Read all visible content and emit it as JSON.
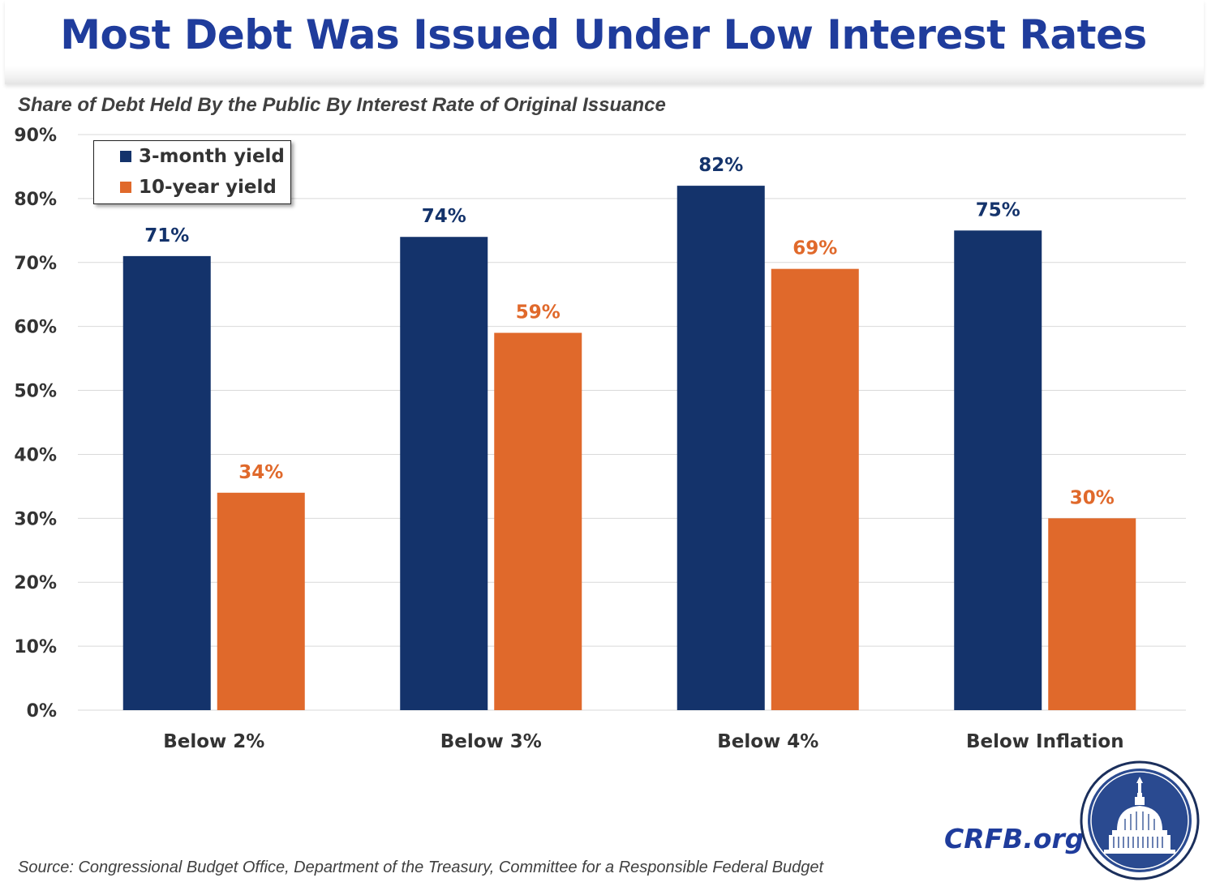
{
  "title": "Most Debt Was Issued Under Low Interest Rates",
  "subtitle": "Share of Debt Held By the Public By Interest Rate of Original Issuance",
  "source": "Source: Congressional Budget Office, Department of the Treasury, Committee for a Responsible Federal Budget",
  "brand": "CRFB.org",
  "logo_icon": "capitol-dome-seal-icon",
  "colors": {
    "title": "#1f3c9c",
    "series_3month": "#14336b",
    "series_10year": "#e0692b",
    "label_3month": "#14336b",
    "label_10year": "#e0692b",
    "grid": "#d9d9d9",
    "axis_text": "#333333"
  },
  "chart_data": {
    "type": "bar",
    "categories": [
      "Below 2%",
      "Below 3%",
      "Below 4%",
      "Below Inflation"
    ],
    "series": [
      {
        "name": "3-month yield",
        "values": [
          71,
          74,
          82,
          75
        ],
        "labels": [
          "71%",
          "74%",
          "82%",
          "75%"
        ]
      },
      {
        "name": "10-year yield",
        "values": [
          34,
          59,
          69,
          30
        ],
        "labels": [
          "34%",
          "59%",
          "69%",
          "30%"
        ]
      }
    ],
    "ylim": [
      0,
      90
    ],
    "yticks": [
      "0%",
      "10%",
      "20%",
      "30%",
      "40%",
      "50%",
      "60%",
      "70%",
      "80%",
      "90%"
    ],
    "grid": true,
    "legend": "top-left"
  }
}
